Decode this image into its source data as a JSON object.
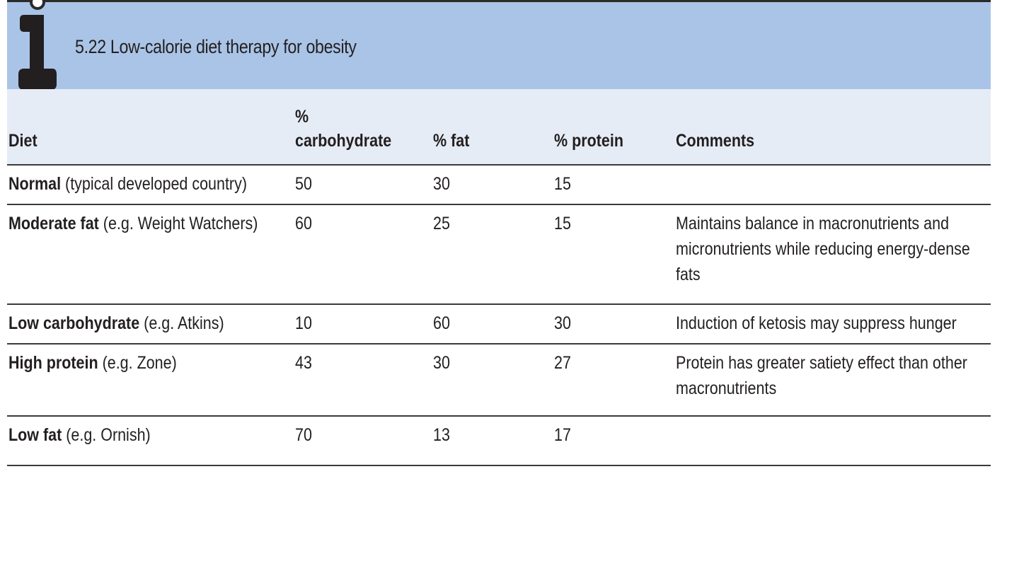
{
  "box": {
    "title": "5.22  Low-calorie diet therapy for obesity",
    "icon": "info-i-icon"
  },
  "table": {
    "headers": {
      "diet": "Diet",
      "carb_line1": "%",
      "carb_line2": "carbohydrate",
      "fat": "% fat",
      "protein": "% protein",
      "comments": "Comments"
    },
    "rows": [
      {
        "name": "Normal",
        "detail": " (typical developed country)",
        "carbohydrate": "50",
        "fat": "30",
        "protein": "15",
        "comments": ""
      },
      {
        "name": "Moderate fat",
        "detail": " (e.g. Weight Watchers)",
        "carbohydrate": "60",
        "fat": "25",
        "protein": "15",
        "comments": "Maintains balance in macronutrients and micronutrients while reducing energy-dense fats"
      },
      {
        "name": "Low carbohydrate",
        "detail": " (e.g. Atkins)",
        "carbohydrate": "10",
        "fat": "60",
        "protein": "30",
        "comments": "Induction of ketosis may suppress hunger"
      },
      {
        "name": "High protein",
        "detail": " (e.g. Zone)",
        "carbohydrate": "43",
        "fat": "30",
        "protein": "27",
        "comments": "Protein has greater satiety effect than other macronutrients"
      },
      {
        "name": "Low fat",
        "detail": " (e.g. Ornish)",
        "carbohydrate": "70",
        "fat": "13",
        "protein": "17",
        "comments": ""
      }
    ]
  },
  "colors": {
    "banner": "#a9c4e6",
    "header_band": "#e6ecf6",
    "rule": "#3a3a3a"
  }
}
